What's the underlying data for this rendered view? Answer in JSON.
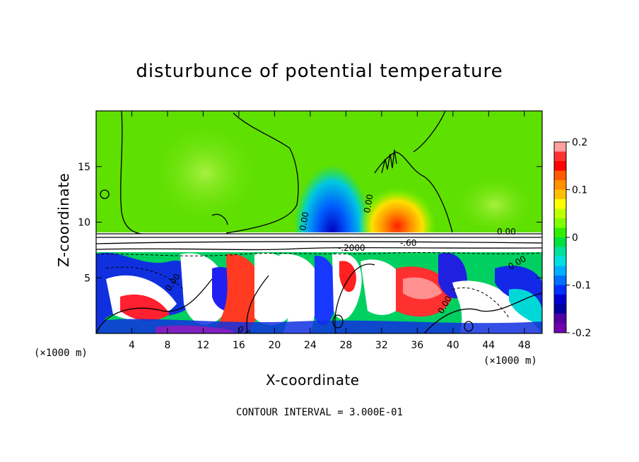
{
  "chart_data": {
    "type": "heatmap",
    "title": "disturbunce of potential temperature",
    "xlabel": "X-coordinate",
    "ylabel": "Z-coordinate",
    "x_unit": "(×1000 m)",
    "y_unit": "(×1000 m)",
    "xlim": [
      0,
      50
    ],
    "ylim": [
      0,
      20
    ],
    "x_ticks": [
      4,
      8,
      12,
      16,
      20,
      24,
      28,
      32,
      36,
      40,
      44,
      48
    ],
    "y_ticks": [
      5,
      10,
      15
    ],
    "colorbar": {
      "range": [
        -0.2,
        0.2
      ],
      "tick_values": [
        0.2,
        0.1,
        0,
        -0.1,
        -0.2
      ],
      "tick_labels": [
        "0.2",
        "0.1",
        "0",
        "-0.1",
        "-0.2"
      ],
      "colors": [
        "#FFA0A0",
        "#FF3030",
        "#FF0000",
        "#FF5A00",
        "#FF9000",
        "#FFC000",
        "#FFFF00",
        "#C0FF00",
        "#80FF00",
        "#30F000",
        "#00E040",
        "#00E0A0",
        "#00E0E0",
        "#00B0FF",
        "#0070FF",
        "#0030FF",
        "#0000D0",
        "#0000A0",
        "#5000A0",
        "#7000B0"
      ]
    },
    "contour_labels": [
      "0.00",
      "0.00",
      "0.00",
      "-.2000",
      "-.60",
      "0.00",
      "0.00",
      "0.00",
      "0.00"
    ],
    "contour_interval": "CONTOUR INTERVAL = 3.000E-01"
  }
}
